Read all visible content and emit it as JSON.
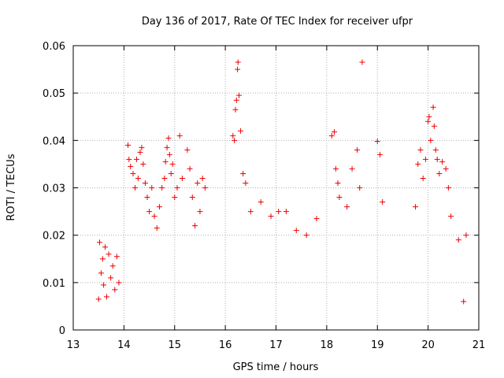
{
  "chart_data": {
    "type": "scatter",
    "title": "Day 136 of 2017, Rate Of TEC Index for receiver ufpr",
    "xlabel": "GPS time / hours",
    "ylabel": "ROTI / TECUs",
    "xlim": [
      13,
      21
    ],
    "ylim": [
      0,
      0.06
    ],
    "x_ticks": [
      "13",
      "14",
      "15",
      "16",
      "17",
      "18",
      "19",
      "20",
      "21"
    ],
    "y_ticks": [
      "0",
      "0.01",
      "0.02",
      "0.03",
      "0.04",
      "0.05",
      "0.06"
    ],
    "grid": true,
    "marker": "plus",
    "color": "#ee0000",
    "x_range_of_data": [
      13.5,
      20.75
    ],
    "series": [
      {
        "values": [
          [
            13.5,
            0.0065
          ],
          [
            13.52,
            0.0185
          ],
          [
            13.55,
            0.012
          ],
          [
            13.58,
            0.015
          ],
          [
            13.6,
            0.0095
          ],
          [
            13.63,
            0.0175
          ],
          [
            13.66,
            0.007
          ],
          [
            13.7,
            0.016
          ],
          [
            13.74,
            0.011
          ],
          [
            13.78,
            0.0135
          ],
          [
            13.82,
            0.0085
          ],
          [
            13.86,
            0.0155
          ],
          [
            13.9,
            0.01
          ],
          [
            14.08,
            0.039
          ],
          [
            14.1,
            0.036
          ],
          [
            14.13,
            0.0345
          ],
          [
            14.18,
            0.033
          ],
          [
            14.22,
            0.03
          ],
          [
            14.25,
            0.036
          ],
          [
            14.28,
            0.032
          ],
          [
            14.32,
            0.0375
          ],
          [
            14.35,
            0.0385
          ],
          [
            14.38,
            0.035
          ],
          [
            14.42,
            0.031
          ],
          [
            14.46,
            0.028
          ],
          [
            14.5,
            0.025
          ],
          [
            14.55,
            0.03
          ],
          [
            14.6,
            0.024
          ],
          [
            14.65,
            0.0215
          ],
          [
            14.7,
            0.026
          ],
          [
            14.75,
            0.03
          ],
          [
            14.8,
            0.032
          ],
          [
            14.82,
            0.0355
          ],
          [
            14.85,
            0.0385
          ],
          [
            14.88,
            0.0405
          ],
          [
            14.9,
            0.037
          ],
          [
            14.93,
            0.033
          ],
          [
            14.96,
            0.035
          ],
          [
            15.0,
            0.028
          ],
          [
            15.05,
            0.03
          ],
          [
            15.1,
            0.041
          ],
          [
            15.15,
            0.032
          ],
          [
            15.25,
            0.038
          ],
          [
            15.3,
            0.034
          ],
          [
            15.35,
            0.028
          ],
          [
            15.4,
            0.022
          ],
          [
            15.45,
            0.031
          ],
          [
            15.5,
            0.025
          ],
          [
            15.55,
            0.032
          ],
          [
            15.6,
            0.03
          ],
          [
            16.15,
            0.041
          ],
          [
            16.18,
            0.04
          ],
          [
            16.2,
            0.0465
          ],
          [
            16.22,
            0.0485
          ],
          [
            16.24,
            0.055
          ],
          [
            16.25,
            0.0565
          ],
          [
            16.27,
            0.0495
          ],
          [
            16.3,
            0.042
          ],
          [
            16.35,
            0.033
          ],
          [
            16.4,
            0.031
          ],
          [
            16.5,
            0.025
          ],
          [
            16.7,
            0.027
          ],
          [
            16.9,
            0.024
          ],
          [
            17.05,
            0.025
          ],
          [
            17.2,
            0.025
          ],
          [
            17.4,
            0.021
          ],
          [
            17.6,
            0.02
          ],
          [
            17.8,
            0.0235
          ],
          [
            18.1,
            0.041
          ],
          [
            18.15,
            0.0418
          ],
          [
            18.18,
            0.034
          ],
          [
            18.22,
            0.031
          ],
          [
            18.25,
            0.028
          ],
          [
            18.4,
            0.026
          ],
          [
            18.5,
            0.034
          ],
          [
            18.6,
            0.038
          ],
          [
            18.65,
            0.03
          ],
          [
            18.7,
            0.0565
          ],
          [
            19.0,
            0.0398
          ],
          [
            19.05,
            0.037
          ],
          [
            19.1,
            0.027
          ],
          [
            19.75,
            0.026
          ],
          [
            19.8,
            0.035
          ],
          [
            19.85,
            0.038
          ],
          [
            19.9,
            0.032
          ],
          [
            19.95,
            0.036
          ],
          [
            20.0,
            0.044
          ],
          [
            20.02,
            0.045
          ],
          [
            20.05,
            0.04
          ],
          [
            20.1,
            0.047
          ],
          [
            20.12,
            0.043
          ],
          [
            20.15,
            0.038
          ],
          [
            20.18,
            0.036
          ],
          [
            20.22,
            0.033
          ],
          [
            20.28,
            0.0355
          ],
          [
            20.35,
            0.034
          ],
          [
            20.4,
            0.03
          ],
          [
            20.45,
            0.024
          ],
          [
            20.6,
            0.019
          ],
          [
            20.7,
            0.006
          ],
          [
            20.75,
            0.02
          ]
        ]
      }
    ]
  }
}
